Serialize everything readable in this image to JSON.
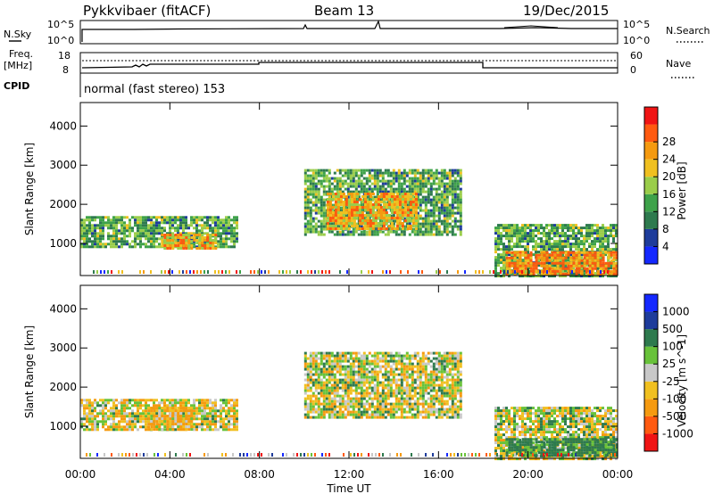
{
  "header": {
    "title": "Pykkvibaer (fitACF)",
    "beam": "Beam 13",
    "date": "19/Dec/2015"
  },
  "noise_panel": {
    "left_label": "N.Sky",
    "right_label": "N.Search",
    "ticks": [
      "10^5",
      "10^0"
    ]
  },
  "freq_panel": {
    "left_label_1": "Freq.",
    "left_label_2": "[MHz]",
    "left_ticks": [
      "18",
      "8"
    ],
    "right_label": "Nave",
    "right_ticks": [
      "60",
      "0"
    ]
  },
  "cpid_panel": {
    "label": "CPID",
    "text": "normal (fast stereo) 153"
  },
  "axes": {
    "xlabel": "Time UT",
    "ylabel": "Slant Range [km]",
    "x_ticks": [
      "00:00",
      "04:00",
      "08:00",
      "12:00",
      "16:00",
      "20:00",
      "00:00"
    ],
    "y_ticks": [
      "1000",
      "2000",
      "3000",
      "4000"
    ]
  },
  "colors": {
    "power": [
      "#1428ff",
      "#1e3c9b",
      "#2e7a4e",
      "#3ea24a",
      "#9acd4a",
      "#f0c020",
      "#f59a10",
      "#ff5a10",
      "#f01414"
    ],
    "velocity": [
      "#1428ff",
      "#1e3c9b",
      "#2e7a4e",
      "#68c23a",
      "#c8c8c8",
      "#f0c020",
      "#f59a10",
      "#ff5a10",
      "#f01414"
    ]
  },
  "chart_data": [
    {
      "type": "heatmap",
      "title": "Power",
      "colorbar_label": "Power [dB]",
      "colorbar_ticks": [
        "4",
        "8",
        "12",
        "16",
        "20",
        "24",
        "28"
      ],
      "x_range": [
        "00:00",
        "24:00"
      ],
      "ylim": [
        180,
        4600
      ],
      "regions": [
        {
          "t0": 0.0,
          "t1": 7.0,
          "r0": 900,
          "r1": 1700,
          "value": 14
        },
        {
          "t0": 3.6,
          "t1": 6.0,
          "r0": 900,
          "r1": 1250,
          "value": 24
        },
        {
          "t0": 10.0,
          "t1": 17.0,
          "r0": 1200,
          "r1": 2900,
          "value": 14
        },
        {
          "t0": 11.0,
          "t1": 15.0,
          "r0": 1400,
          "r1": 2300,
          "value": 24
        },
        {
          "t0": 18.5,
          "t1": 24.0,
          "r0": 200,
          "r1": 1500,
          "value": 14
        },
        {
          "t0": 19.0,
          "t1": 24.0,
          "r0": 250,
          "r1": 800,
          "value": 28
        }
      ]
    },
    {
      "type": "heatmap",
      "title": "Velocity",
      "colorbar_label": "Velocity [m s^-1]",
      "colorbar_ticks": [
        "1000",
        "500",
        "100",
        "25",
        "-25",
        "-100",
        "-500",
        "-1000"
      ],
      "x_range": [
        "00:00",
        "24:00"
      ],
      "ylim": [
        180,
        4600
      ],
      "regions": [
        {
          "t0": 0.0,
          "t1": 7.0,
          "r0": 900,
          "r1": 1700,
          "value": -25
        },
        {
          "t0": 3.0,
          "t1": 5.0,
          "r0": 900,
          "r1": 1500,
          "value": -100
        },
        {
          "t0": 10.0,
          "t1": 17.0,
          "r0": 1200,
          "r1": 2900,
          "value": 0
        },
        {
          "t0": 18.5,
          "t1": 24.0,
          "r0": 200,
          "r1": 1500,
          "value": 0
        },
        {
          "t0": 19.0,
          "t1": 24.0,
          "r0": 250,
          "r1": 700,
          "value": 200
        }
      ]
    }
  ]
}
